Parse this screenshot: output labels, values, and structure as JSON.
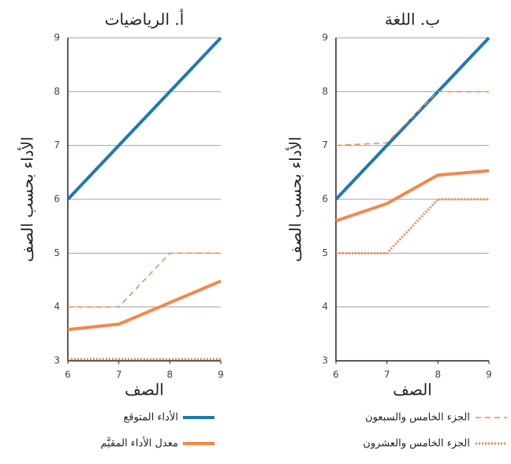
{
  "chart_data": [
    {
      "type": "line",
      "title": "أ. الرياضيات",
      "x_label": "الصف",
      "y_label": "الأداء بحسب الصف",
      "x": [
        6,
        7,
        8,
        9
      ],
      "xlim": [
        6,
        9
      ],
      "xticks": [
        6,
        7,
        8,
        9
      ],
      "ylim": [
        3,
        9
      ],
      "yticks": [
        3,
        4,
        5,
        6,
        7,
        8,
        9
      ],
      "grid": true,
      "series": [
        {
          "name": "الأداء المتوقع",
          "color": "#1f78b4",
          "style": "solid",
          "width": 4,
          "values": [
            6,
            7,
            8,
            9
          ]
        },
        {
          "name": "معدل الأداء المقيَّم",
          "color": "#f4874b",
          "style": "solid",
          "width": 4,
          "values": [
            3.58,
            3.68,
            4.08,
            4.48
          ]
        },
        {
          "color": "#f4874b",
          "style": "dashed",
          "width": 1.5,
          "values": [
            4,
            4,
            5,
            5
          ]
        },
        {
          "color": "#f4874b",
          "style": "dotted",
          "width": 3,
          "values": [
            3.03,
            3.03,
            3.03,
            3.03
          ]
        }
      ]
    },
    {
      "type": "line",
      "title": "ب. اللغة",
      "x_label": "الصف",
      "y_label": "الأداء بحسب الصف",
      "x": [
        6,
        7,
        8,
        9
      ],
      "xlim": [
        6,
        9
      ],
      "xticks": [
        6,
        7,
        8,
        9
      ],
      "ylim": [
        3,
        9
      ],
      "yticks": [
        3,
        4,
        5,
        6,
        7,
        8,
        9
      ],
      "grid": true,
      "series": [
        {
          "color": "#1f78b4",
          "style": "solid",
          "width": 4,
          "values": [
            6,
            7,
            8,
            9
          ]
        },
        {
          "color": "#f4874b",
          "style": "solid",
          "width": 4,
          "values": [
            5.6,
            5.92,
            6.45,
            6.53
          ]
        },
        {
          "name": "الجزء الخامس والسبعون",
          "color": "#f4874b",
          "style": "dashed",
          "width": 1.5,
          "values": [
            7,
            7.05,
            8,
            8
          ]
        },
        {
          "name": "الجزء الخامس والعشرون",
          "color": "#f4874b",
          "style": "dotted",
          "width": 3,
          "values": [
            5,
            5,
            6,
            6
          ]
        }
      ]
    }
  ]
}
